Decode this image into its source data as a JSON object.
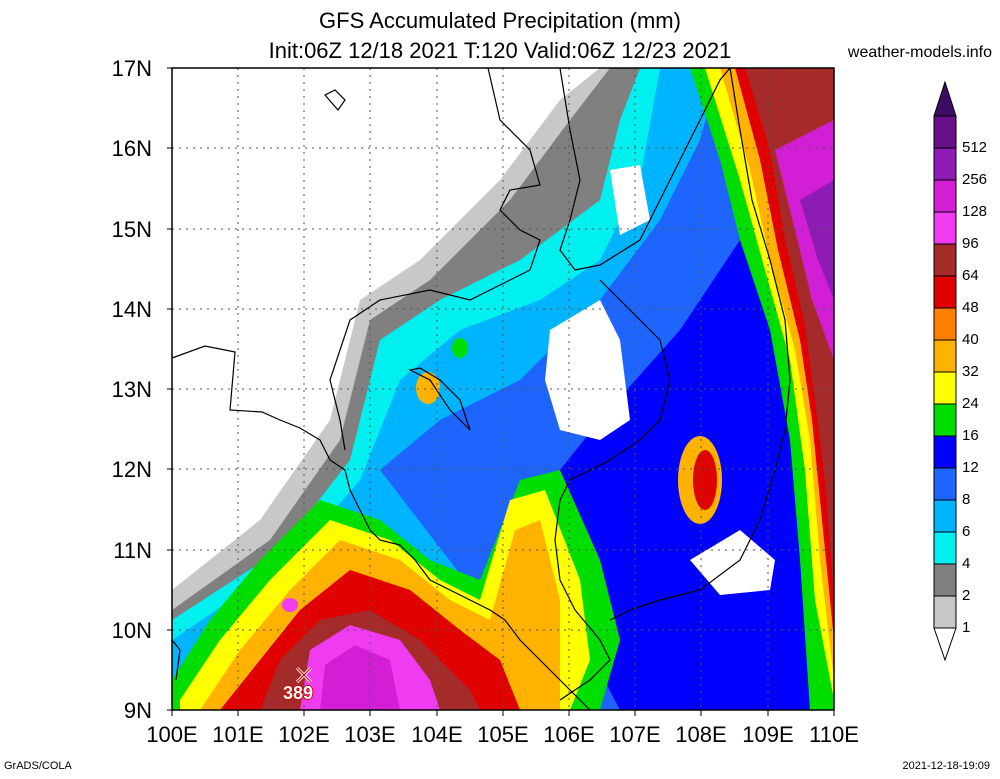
{
  "title_line1": "GFS Accumulated Precipitation (mm)",
  "title_line2": "Init:06Z 12/18 2021 T:120 Valid:06Z 12/23 2021",
  "site": "weather-models.info",
  "lat_labels": [
    "17N",
    "16N",
    "15N",
    "14N",
    "13N",
    "12N",
    "11N",
    "10N",
    "9N"
  ],
  "lon_labels": [
    "100E",
    "101E",
    "102E",
    "103E",
    "104E",
    "105E",
    "106E",
    "107E",
    "108E",
    "109E",
    "110E"
  ],
  "colorbar": {
    "labels": [
      "512",
      "256",
      "128",
      "96",
      "64",
      "48",
      "40",
      "32",
      "24",
      "16",
      "12",
      "8",
      "6",
      "4",
      "2",
      "1"
    ],
    "colors": [
      "#6a0f8a",
      "#8e1bb4",
      "#d21fd6",
      "#f03cf0",
      "#a52a2a",
      "#e00000",
      "#ff7f00",
      "#ffb300",
      "#ffff00",
      "#00dd00",
      "#0000ff",
      "#1e64ff",
      "#00b4ff",
      "#00f0f0",
      "#808080",
      "#c8c8c8"
    ]
  },
  "max_marker": {
    "symbol": "×",
    "value": "389"
  },
  "footer_left": "GrADS/COLA",
  "footer_right": "2021-12-18-19:09"
}
